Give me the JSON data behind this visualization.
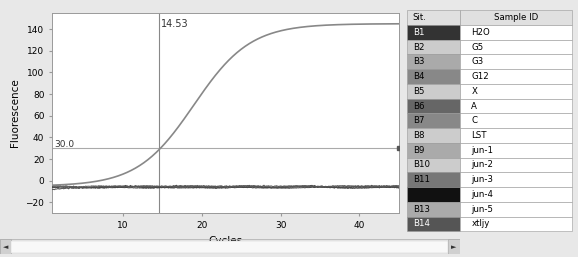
{
  "xlabel": "Cycles",
  "ylabel": "Fluorescence",
  "xlim": [
    1,
    45
  ],
  "ylim": [
    -30,
    155
  ],
  "yticks": [
    -20,
    0,
    20,
    40,
    60,
    80,
    100,
    120,
    140
  ],
  "xticks": [
    10,
    20,
    30,
    40
  ],
  "threshold_y": 30.0,
  "threshold_x": 14.53,
  "threshold_label": "14.53",
  "threshold_y_label": "30.0",
  "sigmoid_color": "#888888",
  "flat_color": "#333333",
  "threshold_line_color": "#aaaaaa",
  "bg_color": "#e8e8e8",
  "plot_bg": "#ffffff",
  "table_headers": [
    "Sit.",
    "Sample ID"
  ],
  "table_rows": [
    [
      "B1",
      "H2O"
    ],
    [
      "B2",
      "G5"
    ],
    [
      "B3",
      "G3"
    ],
    [
      "B4",
      "G12"
    ],
    [
      "B5",
      "X"
    ],
    [
      "B6",
      "A"
    ],
    [
      "B7",
      "C"
    ],
    [
      "B8",
      "LST"
    ],
    [
      "B9",
      "jun-1"
    ],
    [
      "B10",
      "jun-2"
    ],
    [
      "B11",
      "jun-3"
    ],
    [
      "",
      "jun-4"
    ],
    [
      "B13",
      "jun-5"
    ],
    [
      "B14",
      "xtljy"
    ]
  ],
  "row_left_colors": [
    "#333333",
    "#cccccc",
    "#aaaaaa",
    "#888888",
    "#cccccc",
    "#666666",
    "#888888",
    "#cccccc",
    "#aaaaaa",
    "#cccccc",
    "#777777",
    "#111111",
    "#aaaaaa",
    "#555555"
  ],
  "table_font_size": 6.2
}
